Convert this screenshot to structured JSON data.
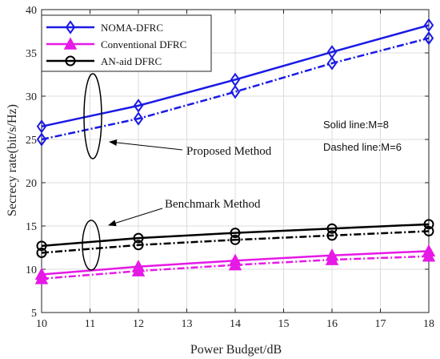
{
  "chart_data": {
    "type": "line",
    "x": [
      10,
      12,
      14,
      16,
      18
    ],
    "xlabel": "Power Budget/dB",
    "ylabel": "Secrecy rate(bit/s/Hz)",
    "xlim": [
      10,
      18
    ],
    "ylim": [
      5,
      40
    ],
    "xticks": [
      "10",
      "11",
      "12",
      "13",
      "14",
      "15",
      "16",
      "17",
      "18"
    ],
    "yticks": [
      "5",
      "10",
      "15",
      "20",
      "25",
      "30",
      "35",
      "40"
    ],
    "grid": true,
    "legend_position": "top-left",
    "series": [
      {
        "name": "NOMA-DFRC",
        "M": 8,
        "style": "solid",
        "marker": "diamond",
        "color": "#1a1ae6",
        "values": [
          26.5,
          28.9,
          31.9,
          35.1,
          38.2
        ]
      },
      {
        "name": "NOMA-DFRC",
        "M": 6,
        "style": "dashed",
        "marker": "diamond",
        "color": "#1a1ae6",
        "values": [
          25.0,
          27.4,
          30.5,
          33.8,
          36.7
        ]
      },
      {
        "name": "AN-aid DFRC",
        "M": 8,
        "style": "solid",
        "marker": "circle",
        "color": "#000000",
        "values": [
          12.7,
          13.6,
          14.2,
          14.7,
          15.2
        ]
      },
      {
        "name": "AN-aid DFRC",
        "M": 6,
        "style": "dashed",
        "marker": "circle",
        "color": "#000000",
        "values": [
          11.9,
          12.8,
          13.4,
          13.9,
          14.4
        ]
      },
      {
        "name": "Conventional DFRC",
        "M": 8,
        "style": "solid",
        "marker": "triangle",
        "color": "#e619e6",
        "values": [
          9.4,
          10.3,
          11.0,
          11.6,
          12.1
        ]
      },
      {
        "name": "Conventional DFRC",
        "M": 6,
        "style": "dashed",
        "marker": "triangle",
        "color": "#e619e6",
        "values": [
          8.9,
          9.8,
          10.5,
          11.1,
          11.5
        ]
      }
    ],
    "legend": [
      {
        "label": "NOMA-DFRC",
        "marker": "diamond",
        "color": "#1a1ae6"
      },
      {
        "label": "Conventional DFRC",
        "marker": "triangle",
        "color": "#e619e6"
      },
      {
        "label": "AN-aid DFRC",
        "marker": "circle",
        "color": "#000000"
      }
    ],
    "notes": [
      "Solid line:M=8",
      "Dashed line:M=6"
    ],
    "annotations": {
      "proposed": "Proposed Method",
      "benchmark": "Benchmark Method"
    }
  }
}
